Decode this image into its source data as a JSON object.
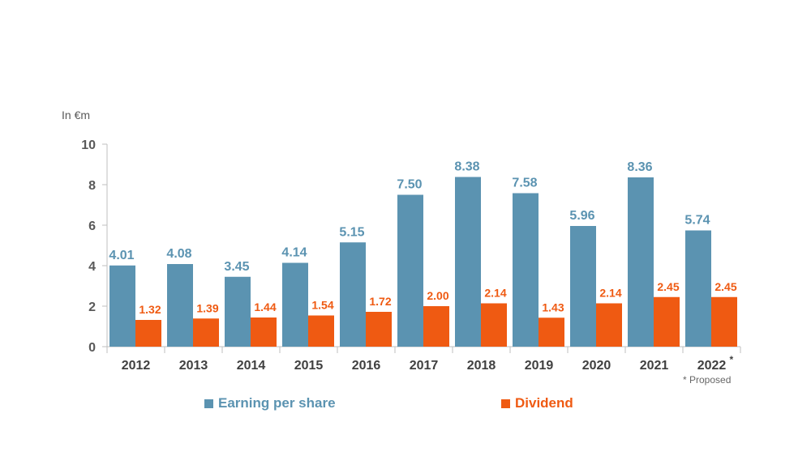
{
  "chart_data": {
    "type": "bar",
    "unit_label": "In €m",
    "categories": [
      "2012",
      "2013",
      "2014",
      "2015",
      "2016",
      "2017",
      "2018",
      "2019",
      "2020",
      "2021",
      "2022"
    ],
    "last_category_marker": "*",
    "series": [
      {
        "name": "Earning per share",
        "values": [
          4.01,
          4.08,
          3.45,
          4.14,
          5.15,
          7.5,
          8.38,
          7.58,
          5.96,
          8.36,
          5.74
        ],
        "labels": [
          "4.01",
          "4.08",
          "3.45",
          "4.14",
          "5.15",
          "7.50",
          "8.38",
          "7.58",
          "5.96",
          "8.36",
          "5.74"
        ],
        "color": "#5b93b1"
      },
      {
        "name": "Dividend",
        "values": [
          1.32,
          1.39,
          1.44,
          1.54,
          1.72,
          2.0,
          2.14,
          1.43,
          2.14,
          2.45,
          2.45
        ],
        "labels": [
          "1.32",
          "1.39",
          "1.44",
          "1.54",
          "1.72",
          "2.00",
          "2.14",
          "1.43",
          "2.14",
          "2.45",
          "2.45"
        ],
        "color": "#ef5a12"
      }
    ],
    "ylim": [
      0,
      10
    ],
    "yticks": [
      "0",
      "2",
      "4",
      "6",
      "8",
      "10"
    ],
    "grid": false,
    "legend_placement": "bottom",
    "footnote": "* Proposed",
    "axis_text_color": "#595959",
    "axis_line_color": "#bfbfbf"
  }
}
